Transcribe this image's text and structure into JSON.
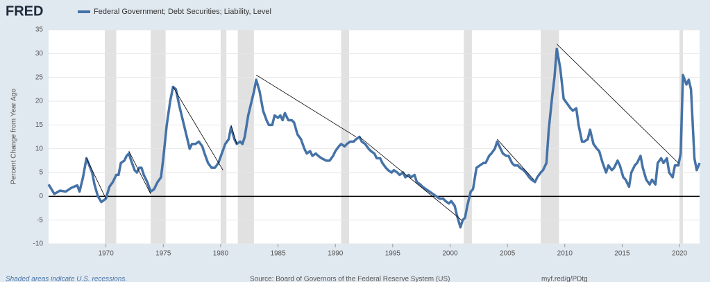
{
  "chart_data": {
    "type": "line",
    "brand": "FRED",
    "y_label": "Percent Change from Year Ago",
    "footnote": "Shaded areas indicate U.S. recessions.",
    "source": "Source: Board of Governors of the Federal Reserve System (US)",
    "url": "myf.red/g/PDtg",
    "xlim": [
      1965,
      2021.75
    ],
    "xticks": [
      1970,
      1975,
      1980,
      1985,
      1990,
      1995,
      2000,
      2005,
      2010,
      2015,
      2020
    ],
    "ylim": [
      -10,
      35
    ],
    "yticks": [
      -10,
      -5,
      0,
      5,
      10,
      15,
      20,
      25,
      30,
      35
    ],
    "grid": true,
    "recessions": [
      [
        1969.9,
        1970.9
      ],
      [
        1973.9,
        1975.2
      ],
      [
        1980.0,
        1980.5
      ],
      [
        1981.5,
        1982.9
      ],
      [
        1990.5,
        1991.2
      ],
      [
        2001.2,
        2001.9
      ],
      [
        2007.9,
        2009.5
      ],
      [
        2020.0,
        2020.3
      ]
    ],
    "trend_lines": [
      {
        "x": [
          1968.3,
          1970.0
        ],
        "values": [
          8,
          -0.5
        ]
      },
      {
        "x": [
          1972.0,
          1973.9
        ],
        "values": [
          9.5,
          0.5
        ]
      },
      {
        "x": [
          1975.85,
          1980.2
        ],
        "values": [
          23,
          5.5
        ]
      },
      {
        "x": [
          1980.9,
          1981.4
        ],
        "values": [
          15,
          11
        ]
      },
      {
        "x": [
          1983.1,
          1991.8
        ],
        "values": [
          25.5,
          12.5
        ]
      },
      {
        "x": [
          1992.1,
          2001.0
        ],
        "values": [
          12.5,
          -5
        ]
      },
      {
        "x": [
          2004.1,
          2007.3
        ],
        "values": [
          12,
          3.5
        ]
      },
      {
        "x": [
          2009.3,
          2019.9
        ],
        "values": [
          32,
          7
        ]
      }
    ],
    "x": [
      1965.0,
      1965.5,
      1966.0,
      1966.5,
      1967.0,
      1967.5,
      1967.7,
      1968.0,
      1968.3,
      1968.8,
      1969.0,
      1969.3,
      1969.6,
      1970.0,
      1970.3,
      1970.6,
      1970.9,
      1971.1,
      1971.3,
      1971.6,
      1971.8,
      1972.0,
      1972.2,
      1972.5,
      1972.7,
      1972.9,
      1973.1,
      1973.3,
      1973.6,
      1973.9,
      1974.2,
      1974.5,
      1974.8,
      1975.0,
      1975.3,
      1975.6,
      1975.85,
      1976.1,
      1976.4,
      1976.7,
      1977.0,
      1977.3,
      1977.5,
      1977.8,
      1978.1,
      1978.4,
      1978.6,
      1978.9,
      1979.2,
      1979.5,
      1979.8,
      1980.1,
      1980.4,
      1980.7,
      1980.9,
      1981.2,
      1981.4,
      1981.7,
      1981.9,
      1982.1,
      1982.4,
      1982.7,
      1982.9,
      1983.1,
      1983.4,
      1983.7,
      1984.0,
      1984.2,
      1984.5,
      1984.7,
      1985.0,
      1985.2,
      1985.4,
      1985.6,
      1985.9,
      1986.2,
      1986.4,
      1986.7,
      1987.0,
      1987.3,
      1987.5,
      1987.8,
      1988.0,
      1988.3,
      1988.5,
      1988.8,
      1989.2,
      1989.5,
      1989.8,
      1990.0,
      1990.3,
      1990.5,
      1990.8,
      1991.0,
      1991.3,
      1991.6,
      1991.8,
      1992.1,
      1992.3,
      1992.6,
      1992.9,
      1993.1,
      1993.4,
      1993.6,
      1993.9,
      1994.1,
      1994.4,
      1994.6,
      1994.9,
      1995.1,
      1995.4,
      1995.6,
      1995.9,
      1996.1,
      1996.4,
      1996.6,
      1996.9,
      1997.1,
      1997.4,
      1997.6,
      1997.9,
      1998.2,
      1998.5,
      1998.8,
      1999.1,
      1999.4,
      1999.6,
      1999.9,
      2000.1,
      2000.4,
      2000.6,
      2000.9,
      2001.1,
      2001.3,
      2001.5,
      2001.8,
      2002.0,
      2002.3,
      2002.6,
      2002.9,
      2003.1,
      2003.4,
      2003.6,
      2003.9,
      2004.1,
      2004.4,
      2004.6,
      2004.9,
      2005.1,
      2005.4,
      2005.6,
      2005.9,
      2006.1,
      2006.4,
      2006.6,
      2006.9,
      2007.1,
      2007.4,
      2007.6,
      2007.9,
      2008.1,
      2008.4,
      2008.6,
      2008.9,
      2009.1,
      2009.3,
      2009.6,
      2009.9,
      2010.2,
      2010.5,
      2010.7,
      2011.0,
      2011.2,
      2011.5,
      2011.7,
      2012.0,
      2012.2,
      2012.5,
      2012.8,
      2013.0,
      2013.3,
      2013.6,
      2013.8,
      2014.1,
      2014.3,
      2014.6,
      2014.8,
      2015.1,
      2015.3,
      2015.6,
      2015.8,
      2016.1,
      2016.3,
      2016.6,
      2016.8,
      2017.1,
      2017.4,
      2017.6,
      2017.9,
      2018.1,
      2018.4,
      2018.6,
      2018.9,
      2019.1,
      2019.4,
      2019.6,
      2019.9,
      2020.1,
      2020.3,
      2020.6,
      2020.8,
      2021.0,
      2021.3,
      2021.5,
      2021.75
    ],
    "series": [
      {
        "name": "Federal Government; Debt Securities; Liability, Level",
        "color": "#4572a7",
        "values": [
          2.5,
          0.5,
          1.2,
          1,
          1.8,
          2.3,
          1,
          4,
          8,
          5,
          2.5,
          0,
          -1.2,
          -0.5,
          2,
          3,
          4.5,
          4.5,
          7,
          7.5,
          8.5,
          9,
          7.5,
          5.5,
          5,
          6,
          6,
          4.5,
          3,
          1,
          1.5,
          3,
          4,
          8,
          15,
          20,
          23,
          22.5,
          19,
          16,
          13,
          10,
          11,
          11,
          11.5,
          10.5,
          9,
          7,
          6,
          6,
          7,
          9,
          11,
          12,
          14.5,
          12,
          11,
          11.5,
          11,
          12.5,
          17,
          20,
          22,
          24.5,
          22,
          18,
          16,
          15,
          15,
          17,
          16.5,
          17,
          16,
          17.5,
          16,
          16,
          15.5,
          13,
          12,
          10,
          9,
          9.5,
          8.5,
          9,
          8.5,
          8,
          7.5,
          7.5,
          8.5,
          9.5,
          10.5,
          11,
          10.5,
          11,
          11.5,
          11.5,
          12,
          12.5,
          11.5,
          11,
          10,
          9.5,
          9,
          8,
          8,
          7,
          6,
          5.5,
          5,
          5.5,
          5,
          4.5,
          5,
          4,
          4.5,
          4,
          4.5,
          3,
          2.5,
          2,
          1.5,
          1,
          0.5,
          0,
          -0.5,
          -0.5,
          -1,
          -1.5,
          -1,
          -2,
          -4,
          -6.5,
          -5,
          -4.5,
          -2,
          1,
          1.5,
          6,
          6.5,
          7,
          7,
          8.5,
          9,
          10,
          11.5,
          10,
          9,
          8.5,
          8.5,
          7,
          6.5,
          6.5,
          6,
          5.5,
          5,
          4,
          3.5,
          3,
          4,
          5,
          5.5,
          7,
          14,
          21,
          25,
          31,
          27,
          20.5,
          19.5,
          18.5,
          18,
          18.5,
          15,
          11.5,
          11.5,
          12,
          14,
          11,
          10,
          9.5,
          7,
          5,
          6.5,
          5.5,
          6,
          7.5,
          6.5,
          4,
          3.5,
          2,
          5,
          6.5,
          7,
          8.5,
          6,
          3.5,
          2.5,
          3.5,
          2.5,
          7,
          8,
          7,
          8,
          5,
          4,
          6.5,
          6.5,
          9,
          25.5,
          23.5,
          24.5,
          22.5,
          8,
          5.5,
          7
        ]
      }
    ]
  }
}
